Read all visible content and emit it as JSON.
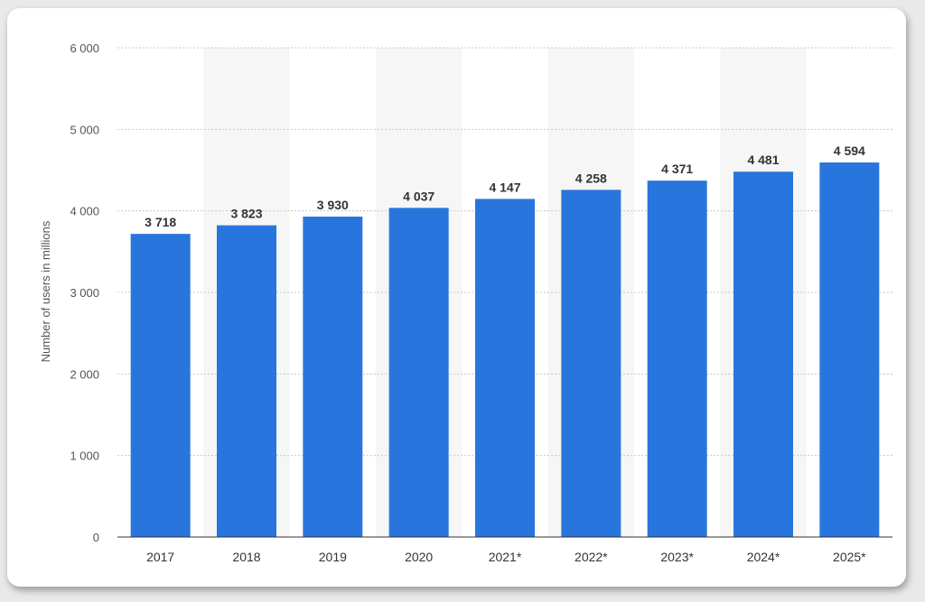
{
  "chart_data": {
    "type": "bar",
    "categories": [
      "2017",
      "2018",
      "2019",
      "2020",
      "2021*",
      "2022*",
      "2023*",
      "2024*",
      "2025*"
    ],
    "values": [
      3718,
      3823,
      3930,
      4037,
      4147,
      4258,
      4371,
      4481,
      4594
    ],
    "value_labels": [
      "3 718",
      "3 823",
      "3 930",
      "4 037",
      "4 147",
      "4 258",
      "4 371",
      "4 481",
      "4 594"
    ],
    "ylabel": "Number of users in millions",
    "xlabel": "",
    "ylim": [
      0,
      6000
    ],
    "yticks": [
      0,
      1000,
      2000,
      3000,
      4000,
      5000,
      6000
    ],
    "ytick_labels": [
      "0",
      "1 000",
      "2 000",
      "3 000",
      "4 000",
      "5 000",
      "6 000"
    ],
    "grid": true,
    "bar_color": "#2876dd"
  }
}
